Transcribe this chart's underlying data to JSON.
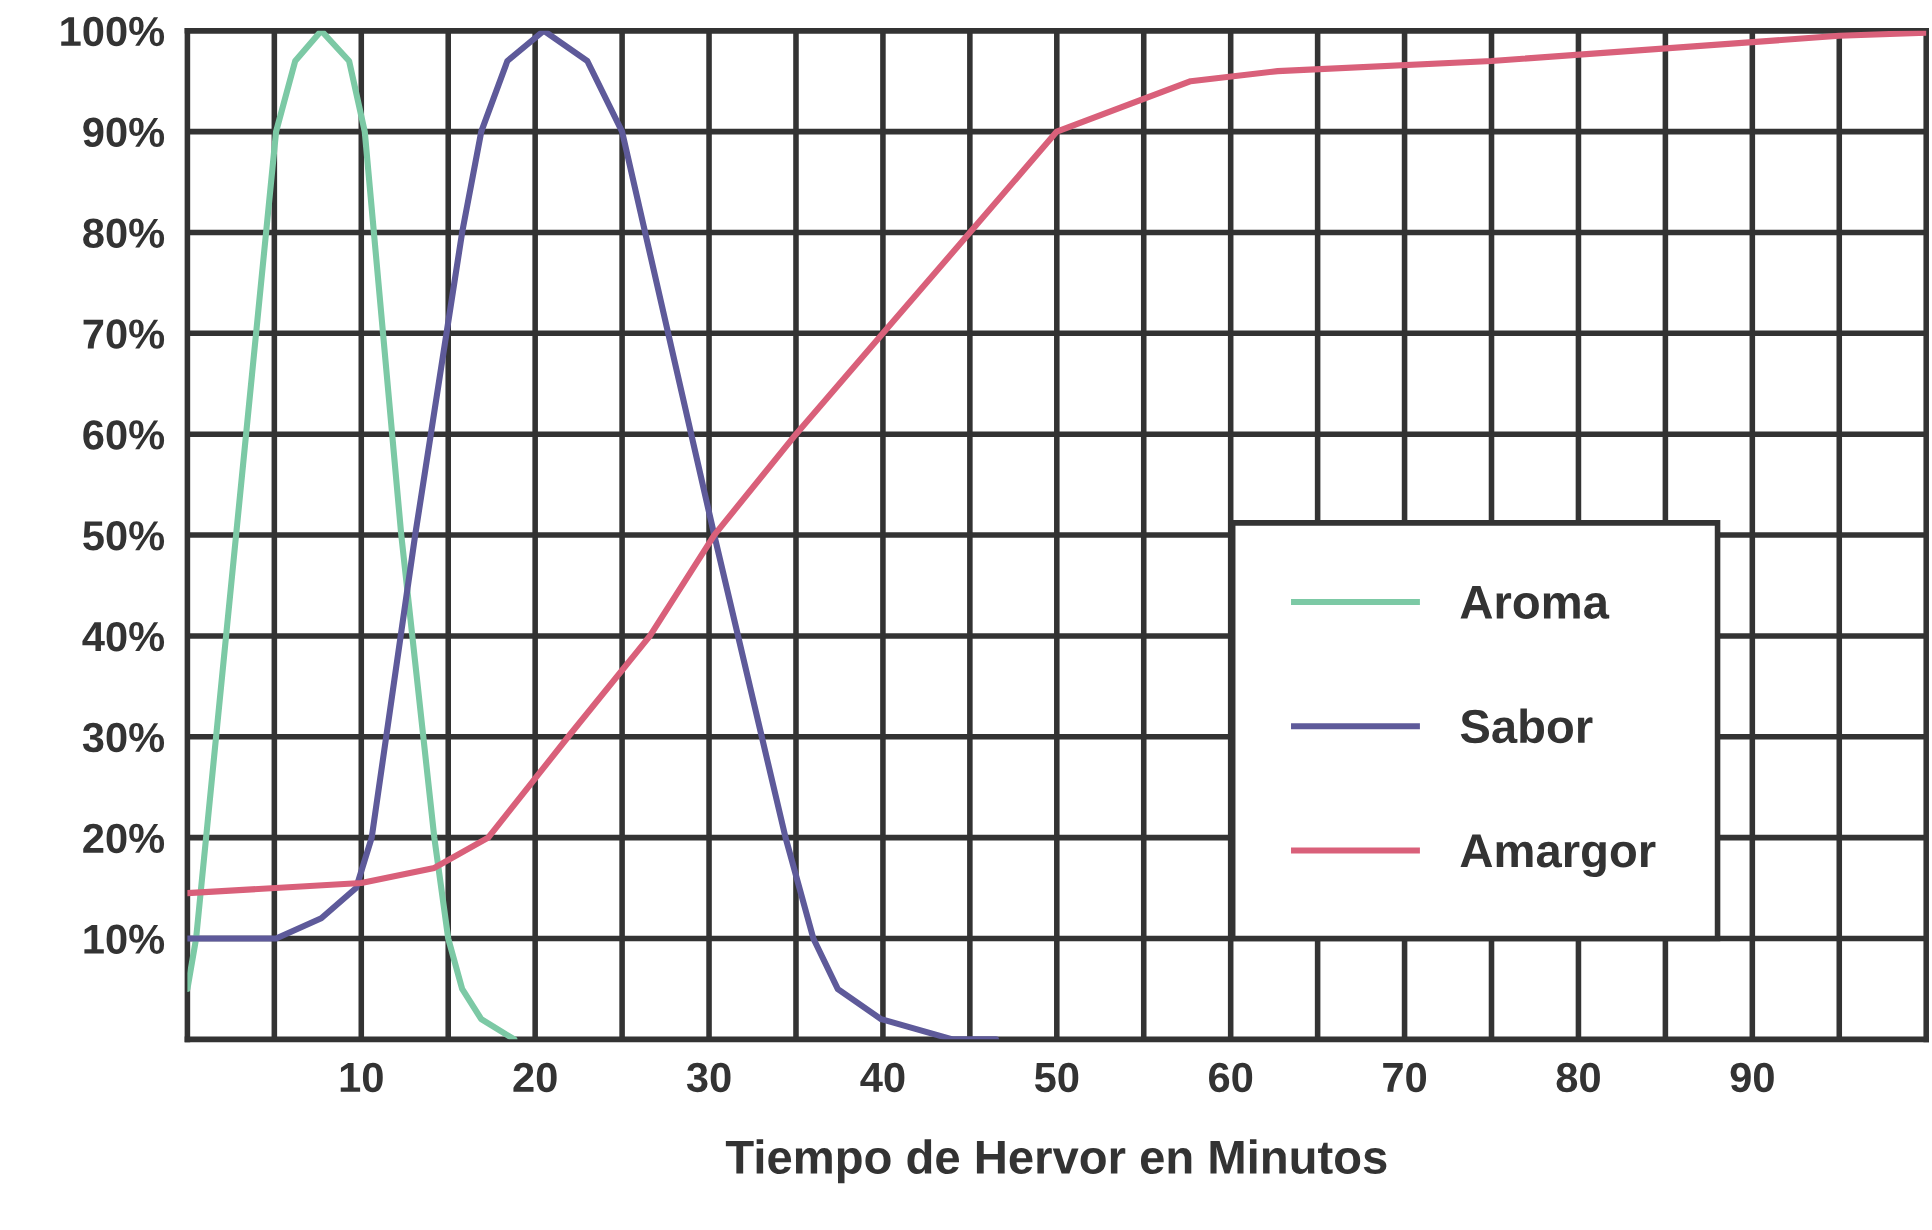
{
  "chart_data": {
    "type": "line",
    "xlabel": "Tiempo de Hervor en Minutos",
    "xlim": [
      0,
      100
    ],
    "ylim": [
      0,
      100
    ],
    "xticks": [
      {
        "value": 5,
        "label": null
      },
      10,
      {
        "value": 15,
        "label": null
      },
      20,
      {
        "value": 25,
        "label": null
      },
      30,
      {
        "value": 35,
        "label": null
      },
      40,
      {
        "value": 45,
        "label": null
      },
      50,
      {
        "value": 55,
        "label": null
      },
      60,
      {
        "value": 65,
        "label": null
      },
      70,
      {
        "value": 75,
        "label": null
      },
      80,
      {
        "value": 85,
        "label": null
      },
      90,
      {
        "value": 95,
        "label": null
      }
    ],
    "yticks": [
      {
        "value": 10,
        "label": "10%"
      },
      {
        "value": 20,
        "label": "20%"
      },
      {
        "value": 30,
        "label": "30%"
      },
      {
        "value": 40,
        "label": "40%"
      },
      {
        "value": 50,
        "label": "50%"
      },
      {
        "value": 60,
        "label": "60%"
      },
      {
        "value": 70,
        "label": "70%"
      },
      {
        "value": 80,
        "label": "80%"
      },
      {
        "value": 90,
        "label": "90%"
      },
      {
        "value": 100,
        "label": "100%"
      }
    ],
    "grid": true,
    "legend": "lower right",
    "marker": "none",
    "line_style": "solid",
    "series": [
      {
        "name": "Aroma",
        "color": "#7cc9a5",
        "x": [
          0,
          0.5,
          2.8,
          5.1,
          6.2,
          7.7,
          9.3,
          10.2,
          12.3,
          14.2,
          15,
          15.8,
          16.9,
          18.8
        ],
        "values": [
          5,
          10,
          50,
          90,
          97,
          100,
          97,
          90,
          50,
          20,
          10,
          5,
          2,
          0
        ]
      },
      {
        "name": "Sabor",
        "color": "#5e5a9a",
        "x": [
          0,
          5.1,
          7.7,
          9.7,
          10.6,
          13.1,
          15.8,
          16.9,
          18.4,
          20.5,
          23,
          25,
          30.3,
          34.4,
          36,
          37.4,
          39.9,
          44,
          46.5
        ],
        "values": [
          10,
          10,
          12,
          15,
          20,
          50,
          80,
          90,
          97,
          100,
          97,
          90,
          50,
          20,
          10,
          5,
          2,
          0,
          0
        ]
      },
      {
        "name": "Amargor",
        "color": "#d9607a",
        "x": [
          0,
          10,
          14.2,
          17.3,
          21.9,
          26.6,
          30.3,
          35,
          40,
          45,
          50,
          57.7,
          62.7,
          75,
          95,
          100
        ],
        "values": [
          14.5,
          15.5,
          17,
          20,
          30,
          40,
          50,
          60,
          70,
          80,
          90,
          95,
          96,
          97,
          99.5,
          99.8
        ]
      }
    ]
  }
}
